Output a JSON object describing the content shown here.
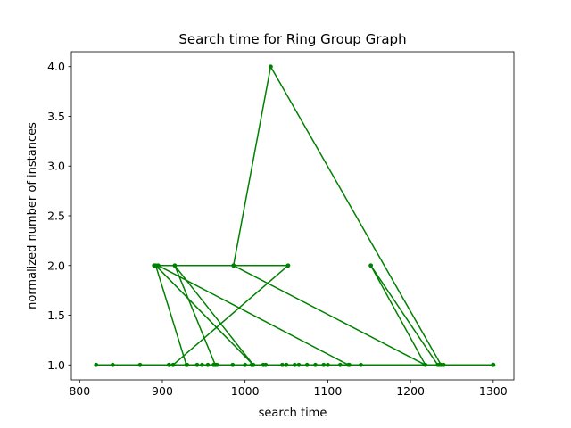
{
  "chart_data": {
    "type": "line",
    "title": "Search time for Ring Group Graph",
    "xlabel": "search time",
    "ylabel": "normalized number of instances",
    "xlim": [
      790,
      1325
    ],
    "ylim": [
      0.85,
      4.15
    ],
    "xticks": [
      800,
      900,
      1000,
      1100,
      1200,
      1300
    ],
    "yticks": [
      1.0,
      1.5,
      2.0,
      2.5,
      3.0,
      3.5,
      4.0
    ],
    "xtick_labels": [
      "800",
      "900",
      "1000",
      "1100",
      "1200",
      "1300"
    ],
    "ytick_labels": [
      "1.0",
      "1.5",
      "2.0",
      "2.5",
      "3.0",
      "3.5",
      "4.0"
    ],
    "grid": false,
    "legend": "none",
    "color": "#008000",
    "series": [
      {
        "x": [
          1300,
          820,
          840,
          873,
          908,
          930,
          942,
          948,
          955,
          962,
          966,
          985,
          1000,
          1008,
          1022,
          1025,
          1045,
          1050,
          1060,
          1065,
          1075,
          1085,
          1095,
          1100,
          1115,
          1126,
          1140,
          1235,
          1240,
          1300,
          1233,
          1152,
          1218,
          986,
          1031,
          1237,
          913,
          1052,
          890,
          895,
          1125,
          964,
          915,
          1010,
          892,
          929,
          908,
          1300
        ],
        "y": [
          1,
          1,
          1,
          1,
          1,
          1,
          1,
          1,
          1,
          1,
          1,
          1,
          1,
          1,
          1,
          1,
          1,
          1,
          1,
          1,
          1,
          1,
          1,
          1,
          1,
          1,
          1,
          1,
          1,
          1,
          1,
          2,
          1,
          2,
          4,
          1,
          1,
          2,
          2,
          2,
          1,
          1,
          2,
          1,
          2,
          1,
          1,
          1
        ]
      }
    ]
  }
}
